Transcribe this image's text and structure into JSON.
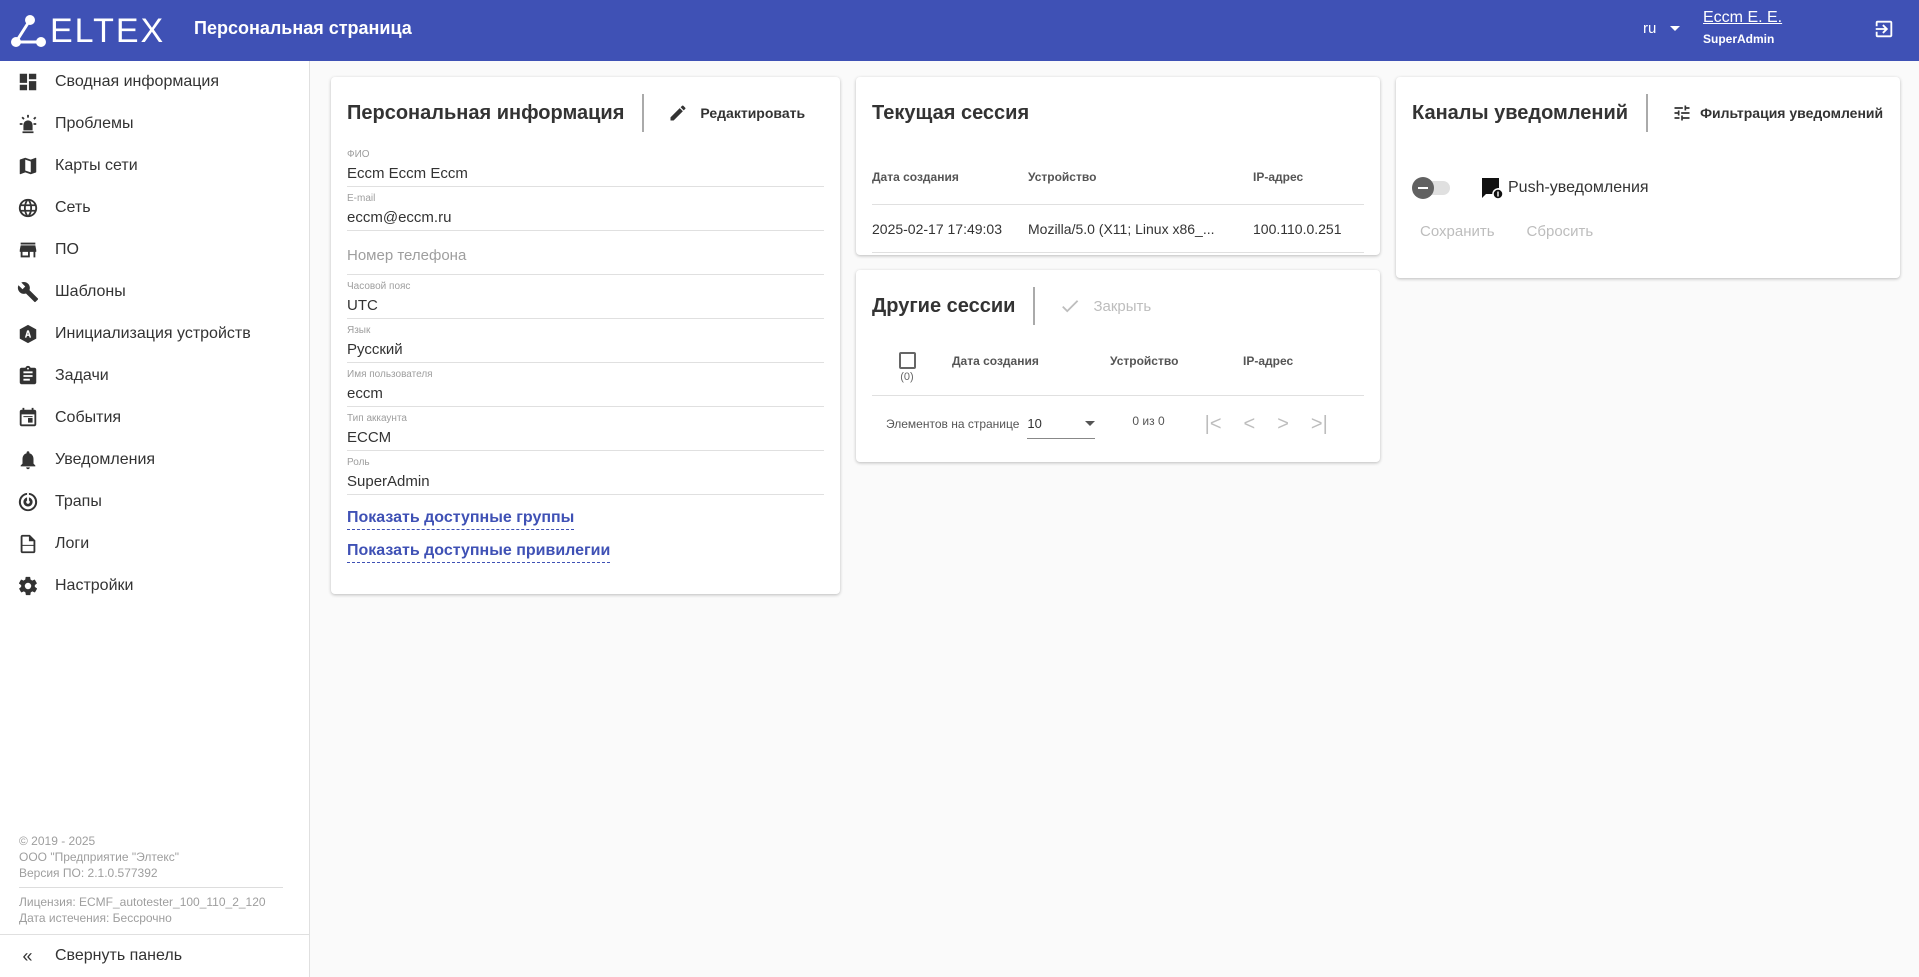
{
  "header": {
    "logo": "ELTEX",
    "title": "Персональная страница",
    "lang": "ru",
    "user_name": "Eccm E. E.",
    "user_role": "SuperAdmin",
    "brand_color": "#3f51b5"
  },
  "sidebar": {
    "items": [
      {
        "label": "Сводная информация",
        "icon": "dashboard-icon"
      },
      {
        "label": "Проблемы",
        "icon": "alarm-light-icon"
      },
      {
        "label": "Карты сети",
        "icon": "map-icon"
      },
      {
        "label": "Сеть",
        "icon": "globe-icon"
      },
      {
        "label": "ПО",
        "icon": "store-icon"
      },
      {
        "label": "Шаблоны",
        "icon": "wrench-icon"
      },
      {
        "label": "Инициализация устройств",
        "icon": "auto-icon"
      },
      {
        "label": "Задачи",
        "icon": "clipboard-icon"
      },
      {
        "label": "События",
        "icon": "calendar-icon"
      },
      {
        "label": "Уведомления",
        "icon": "bell-icon"
      },
      {
        "label": "Трапы",
        "icon": "trap-icon"
      },
      {
        "label": "Логи",
        "icon": "log-file-icon"
      },
      {
        "label": "Настройки",
        "icon": "gear-icon"
      }
    ],
    "footer": {
      "copyright": "© 2019 - 2025",
      "company": "ООО \"Предприятие \"Элтекс\"",
      "version": "Версия ПО: 2.1.0.577392",
      "license": "Лицензия: ECMF_autotester_100_110_2_120",
      "expiry": "Дата истечения: Бессрочно"
    },
    "collapse": "Свернуть панель"
  },
  "personal": {
    "title": "Персональная информация",
    "edit": "Редактировать",
    "fields": [
      {
        "label": "ФИО",
        "value": "Eccm Eccm Eccm"
      },
      {
        "label": "E-mail",
        "value": "eccm@eccm.ru"
      },
      {
        "label": "",
        "placeholder": "Номер телефона"
      },
      {
        "label": "Часовой пояс",
        "value": "UTC"
      },
      {
        "label": "Язык",
        "value": "Русский"
      },
      {
        "label": "Имя пользователя",
        "value": "eccm"
      },
      {
        "label": "Тип аккаунта",
        "value": "ECCM"
      },
      {
        "label": "Роль",
        "value": "SuperAdmin"
      }
    ],
    "show_groups": "Показать доступные группы",
    "show_privileges": "Показать доступные привилегии"
  },
  "current_session": {
    "title": "Текущая сессия",
    "columns": [
      "Дата создания",
      "Устройство",
      "IP-адрес"
    ],
    "rows": [
      [
        "2025-02-17 17:49:03",
        "Mozilla/5.0 (X11; Linux x86_...",
        "100.110.0.251"
      ]
    ]
  },
  "other_sessions": {
    "title": "Другие сессии",
    "close": "Закрыть",
    "selected_count": "(0)",
    "columns": [
      "Дата создания",
      "Устройство",
      "IP-адрес"
    ],
    "per_page_label": "Элементов на странице",
    "per_page": "10",
    "range": "0 из 0"
  },
  "channels": {
    "title": "Каналы уведомлений",
    "filter": "Фильтрация уведомлений",
    "push_label": "Push-уведомления",
    "push_enabled": false,
    "save": "Сохранить",
    "reset": "Сбросить"
  }
}
